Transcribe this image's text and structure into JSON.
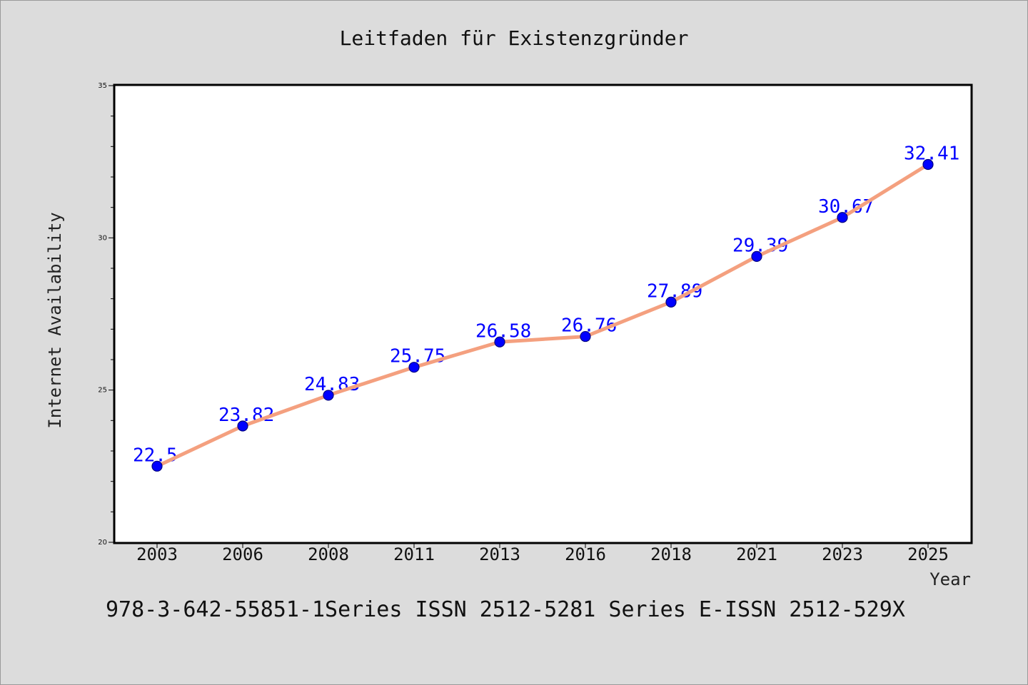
{
  "chart_data": {
    "type": "line",
    "title": "Leitfaden für Existenzgründer",
    "xlabel": "Year",
    "ylabel": "Internet Availability",
    "categories": [
      "2003",
      "2006",
      "2008",
      "2011",
      "2013",
      "2016",
      "2018",
      "2021",
      "2023",
      "2025"
    ],
    "series": [
      {
        "values": [
          22.5,
          23.82,
          24.83,
          25.75,
          26.58,
          26.76,
          27.89,
          29.39,
          30.67,
          32.41
        ]
      }
    ],
    "data_labels": [
      "22.5",
      "23.82",
      "24.83",
      "25.75",
      "26.58",
      "26.76",
      "27.89",
      "29.39",
      "30.67",
      "32.41"
    ],
    "ylim": [
      20,
      35
    ],
    "yticks": [
      "20",
      "25",
      "30",
      "35"
    ],
    "grid": false,
    "colors": {
      "line": "#f4a07f",
      "marker": "#0000ff",
      "marker_edge": "#000080",
      "data_label": "#0000ff",
      "background": "#dcdcdc",
      "plot_background": "#ffffff"
    }
  },
  "footer": {
    "text": "978-3-642-55851-1Series ISSN 2512-5281 Series E-ISSN 2512-529X"
  }
}
